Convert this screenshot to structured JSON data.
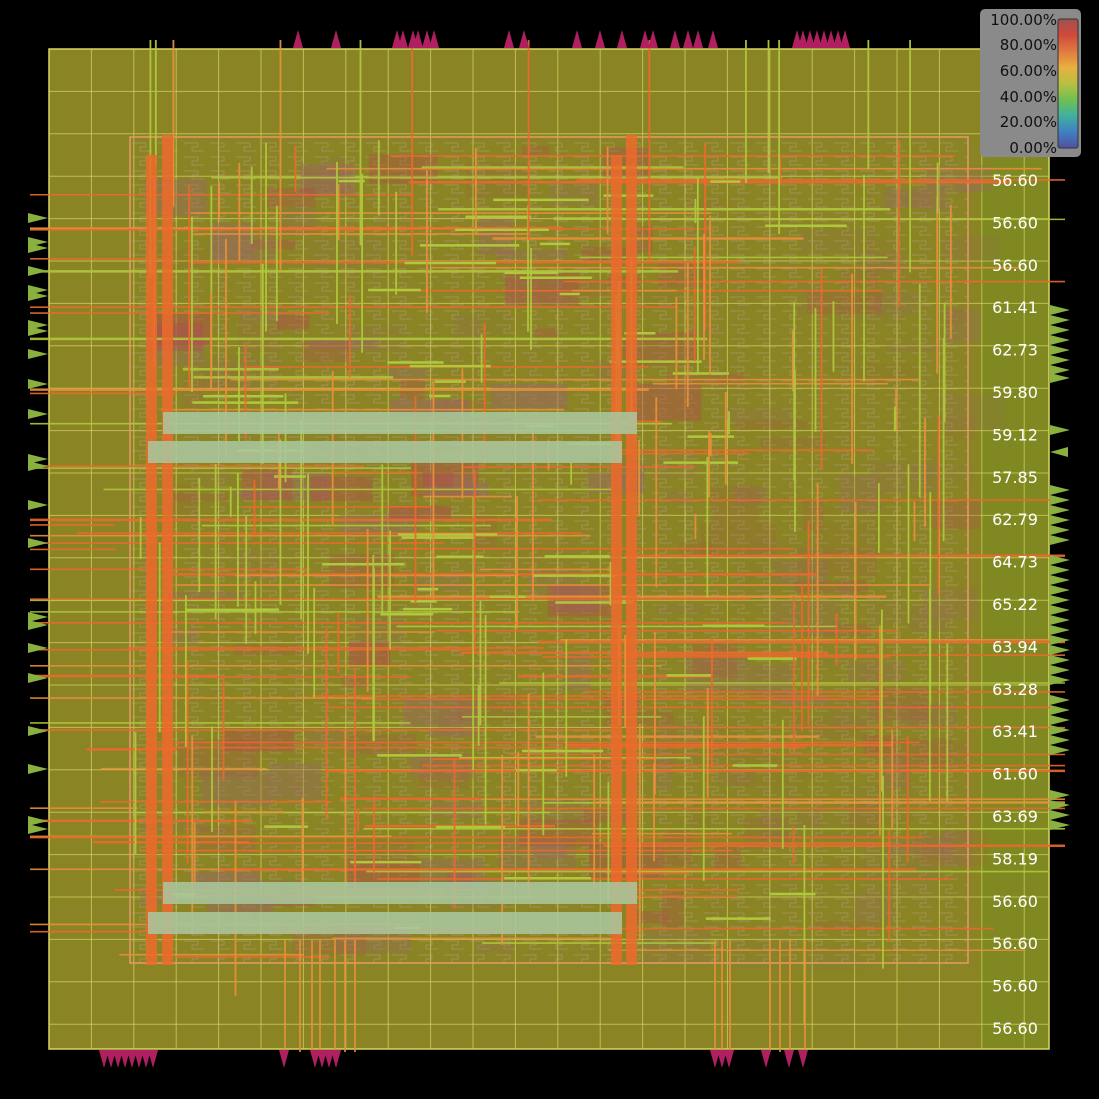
{
  "legend": {
    "labels": [
      "100.00%",
      "80.00%",
      "60.00%",
      "40.00%",
      "20.00%",
      "0.00%"
    ],
    "gradient": [
      "#a05050",
      "#d04a3c",
      "#e07a40",
      "#e8b040",
      "#b8c040",
      "#70c050",
      "#40b0a0",
      "#4080c0",
      "#5050a0"
    ]
  },
  "colors": {
    "background": "#000000",
    "die": "#8a8425",
    "grid_line": "#d8d860",
    "core_outline": "#e89a6a",
    "wire_hot": "#ec6a2c",
    "wire_warm": "#e8903a",
    "wire_cool": "#b0c83c",
    "pin_top_bottom": "#b02060",
    "pin_left_right": "#8ab040",
    "macro": "#a8c8a0",
    "legend_box": "#8a8a8a"
  },
  "row_values": [
    "56.60",
    "56.60",
    "56.60",
    "61.41",
    "62.73",
    "59.80",
    "59.12",
    "57.85",
    "62.79",
    "64.73",
    "65.22",
    "63.94",
    "63.28",
    "63.41",
    "61.60",
    "63.69",
    "58.19",
    "56.60",
    "56.60",
    "56.60",
    "56.60"
  ]
}
